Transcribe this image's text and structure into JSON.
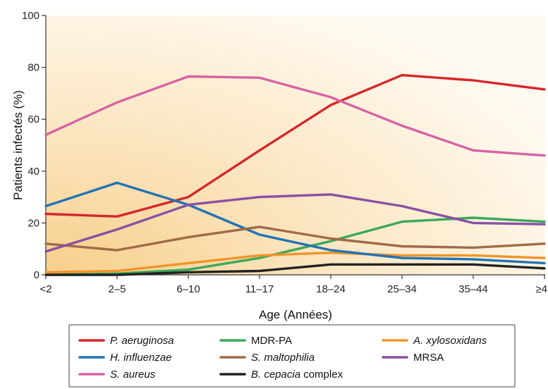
{
  "chart_data": {
    "type": "line",
    "xlabel": "Age (Années)",
    "ylabel": "Patients infectés (%)",
    "ylim": [
      0,
      100
    ],
    "yticks": [
      "0",
      "20",
      "40",
      "60",
      "80",
      "100"
    ],
    "categories": [
      "<2",
      "2–5",
      "6–10",
      "11–17",
      "18–24",
      "25–34",
      "35–44",
      "≥45"
    ],
    "grid": false,
    "legend_position": "bottom",
    "series": [
      {
        "name": "P. aeruginosa",
        "italic": true,
        "color": "#d7262b",
        "values": [
          23.5,
          22.5,
          30,
          48,
          65.5,
          77,
          75,
          71.5
        ]
      },
      {
        "name": "MDR-PA",
        "italic": false,
        "color": "#3aa85a",
        "values": [
          0,
          0.5,
          2,
          6.5,
          13,
          20.5,
          22,
          20.5
        ]
      },
      {
        "name": "A. xylosoxidans",
        "italic": true,
        "color": "#f0942a",
        "values": [
          1,
          1.5,
          4.5,
          7.5,
          8.5,
          7.5,
          7.5,
          6.5
        ]
      },
      {
        "name": "H. influenzae",
        "italic": true,
        "color": "#1f73b6",
        "values": [
          26.5,
          35.5,
          27,
          15.5,
          9.5,
          6.5,
          6,
          4.5
        ]
      },
      {
        "name": "S. maltophilia",
        "italic": true,
        "color": "#a06a47",
        "values": [
          12,
          9.5,
          14.5,
          18.5,
          14,
          11,
          10.5,
          12
        ]
      },
      {
        "name": "MRSA",
        "italic": false,
        "color": "#8a4fa3",
        "values": [
          9,
          17.5,
          27,
          30,
          31,
          26.5,
          20,
          19.5
        ]
      },
      {
        "name": "S. aureus",
        "italic": true,
        "color": "#d762a4",
        "values": [
          54,
          66.5,
          76.5,
          76,
          68.5,
          57.5,
          48,
          46
        ]
      },
      {
        "name": "B. cepacia",
        "name_suffix": " complex",
        "italic": true,
        "color": "#222222",
        "values": [
          0,
          0,
          1,
          1.5,
          4,
          4,
          4,
          2.5
        ]
      }
    ]
  }
}
